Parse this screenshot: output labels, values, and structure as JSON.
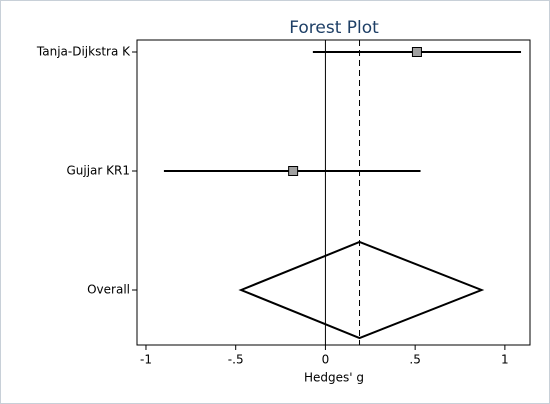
{
  "chart_data": {
    "type": "forest",
    "title": "Forest Plot",
    "xlabel": "Hedges' g",
    "categories": [
      "Tanja-Dijkstra K",
      "Gujjar KR1"
    ],
    "values": [
      0.51,
      -0.18
    ],
    "lower": [
      -0.07,
      -0.9
    ],
    "upper": [
      1.09,
      0.53
    ],
    "overall": {
      "label": "Overall",
      "value": 0.19,
      "lower": -0.47,
      "upper": 0.87
    },
    "null_line": 0,
    "xlim": [
      -1.05,
      1.14
    ],
    "xticks": [
      -1,
      {
        "value": -0.5,
        "label": "-.5"
      },
      0,
      {
        "value": 0.5,
        "label": ".5"
      },
      1
    ],
    "color": "#a0a0a0",
    "title_color": "#1e3f66"
  }
}
